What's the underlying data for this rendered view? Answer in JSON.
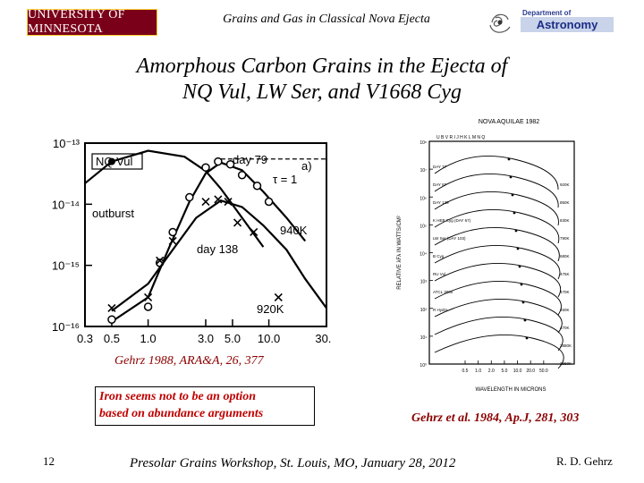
{
  "header": {
    "logo_left": "UNIVERSITY OF MINNESOTA",
    "title": "Grains and Gas in Classical Nova Ejecta",
    "dept_line": "Department of",
    "dept_name": "Astronomy"
  },
  "slide": {
    "title_line1": "Amorphous Carbon Grains in the Ejecta of",
    "title_line2": "NQ Vul, LW Ser, and V1668 Cyg",
    "note_line1": "Iron seems not to be an option",
    "note_line2": "based on abundance arguments",
    "cite_left": "Gehrz 1988, ARA&A, 26, 377",
    "cite_right": "Gehrz et al. 1984, Ap.J, 281, 303"
  },
  "footer": {
    "page": "12",
    "text": "Presolar Grains Workshop, St. Louis, MO, January 28, 2012",
    "author": "R. D. Gehrz"
  },
  "chart_data": [
    {
      "type": "scatter",
      "title": "",
      "xscale": "log",
      "yscale": "log",
      "xlim": [
        0.3,
        30
      ],
      "ylim": [
        1e-16,
        1e-13
      ],
      "xticks": [
        "0.3",
        "0.5",
        "1.0",
        "3.0",
        "5.0",
        "10.0",
        "30.0"
      ],
      "xtick_values": [
        0.3,
        0.5,
        1.0,
        3.0,
        5.0,
        10.0,
        30.0
      ],
      "yticks": [
        "10⁻¹³",
        "10⁻¹⁴",
        "10⁻¹⁵",
        "10⁻¹⁶"
      ],
      "ytick_values": [
        1e-13,
        1e-14,
        1e-15,
        1e-16
      ],
      "labels": {
        "source": "NQ Vul",
        "day79": "day 79",
        "panel": "a)",
        "tau": "τ = 1",
        "outburst": "outburst",
        "t940": "940K",
        "day138": "day 138",
        "t920": "920K"
      },
      "series": [
        {
          "name": "outburst",
          "marker": "filled-circle",
          "x": [
            0.5
          ],
          "y": [
            5e-14
          ],
          "curve_x": [
            0.3,
            0.5,
            1.0,
            2.0,
            3.0,
            4.0,
            6.0,
            9.0
          ],
          "curve_y": [
            2.2e-14,
            5e-14,
            7.5e-14,
            6e-14,
            3.5e-14,
            1.8e-14,
            6e-15,
            2e-15
          ]
        },
        {
          "name": "day 79",
          "marker": "open-circle",
          "x": [
            0.5,
            1.0,
            1.25,
            1.6,
            2.2,
            3.0,
            3.8,
            4.8,
            6.0,
            8.0,
            10.0
          ],
          "y": [
            1.3e-16,
            2.1e-16,
            1.1e-15,
            3.5e-15,
            1.3e-14,
            4e-14,
            5e-14,
            4.5e-14,
            3e-14,
            2e-14,
            1.1e-14
          ],
          "curve_x": [
            0.5,
            1.0,
            1.5,
            2.2,
            3.0,
            4.0,
            6.0,
            9.0,
            14.0,
            20.0
          ],
          "curve_y": [
            1.2e-16,
            3e-16,
            2e-15,
            1.1e-14,
            3.2e-14,
            4.8e-14,
            3.6e-14,
            1.6e-14,
            6e-15,
            2.5e-15
          ]
        },
        {
          "name": "day 138",
          "marker": "cross",
          "x": [
            0.5,
            1.0,
            1.25,
            1.6,
            3.0,
            3.8,
            4.6,
            5.5,
            7.5,
            12.0
          ],
          "y": [
            2e-16,
            3e-16,
            1.2e-15,
            2.5e-15,
            1.1e-14,
            1.2e-14,
            1.1e-14,
            5e-15,
            3.5e-15,
            3e-16
          ],
          "curve_x": [
            0.5,
            1.0,
            1.6,
            2.5,
            4.0,
            6.0,
            9.0,
            14.0,
            20.0,
            30.0
          ],
          "curve_y": [
            1.8e-16,
            5e-16,
            1.8e-15,
            6e-15,
            1.15e-14,
            9e-15,
            4.5e-15,
            1.8e-15,
            6e-16,
            2e-16
          ]
        }
      ]
    },
    {
      "type": "line",
      "title": "NOVA AQUILAE 1982",
      "xlabel": "WAVELENGTH IN MICRONS",
      "ylabel": "RELATIVE λFλ IN WATTS/CM²",
      "xticks": [
        "0.5",
        "1.0",
        "2.0",
        "5.0",
        "10.0",
        "20.0",
        "50.0"
      ],
      "top_bands": "U B V R I J H K L M N Q",
      "yticks": [
        "10⁸",
        "10⁷",
        "10⁶",
        "10⁵",
        "10⁴",
        "10³",
        "10²",
        "10¹",
        "10⁰"
      ],
      "series": [
        {
          "name": "DAY 77",
          "temp": "920K"
        },
        {
          "name": "DAY 87",
          "temp": "850K"
        },
        {
          "name": "DAY 139",
          "temp": "830K"
        },
        {
          "name": "K HEB Cyg (DAY 67)",
          "temp": "790K"
        },
        {
          "name": "LW Ser (DAY 103)",
          "temp": "680K"
        },
        {
          "name": "B Cyg",
          "temp": "475K"
        },
        {
          "name": "RU Vul",
          "temp": "470K"
        },
        {
          "name": "ATCL 3000",
          "temp": "450K"
        },
        {
          "name": "R Hydra",
          "temp": "470K"
        },
        {
          "name": "",
          "temp": "2880K"
        },
        {
          "name": "",
          "temp": "2360K"
        }
      ]
    }
  ]
}
